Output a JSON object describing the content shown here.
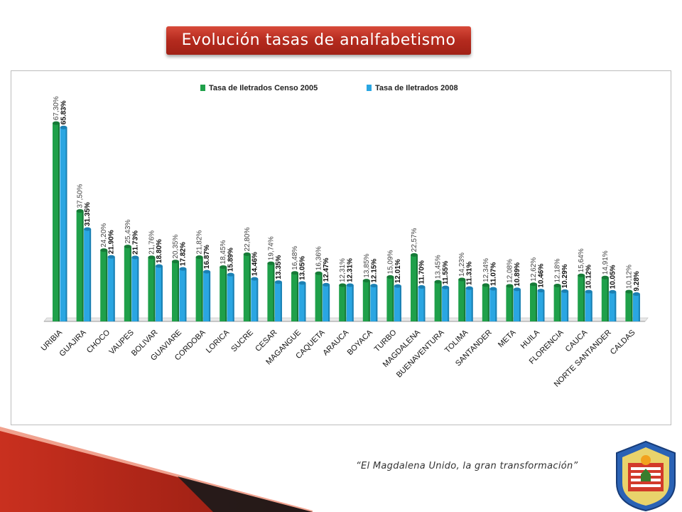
{
  "title": "Evolución tasas de analfabetismo",
  "tagline": "“El Magdalena Unido, la gran transformación”",
  "colors": {
    "series_2005": "#1fa04a",
    "series_2008": "#2aa6e2",
    "title_bg": "#b42a1e",
    "ribbon": "#b3261a"
  },
  "chart_data": {
    "type": "bar",
    "legend_position": "top",
    "grid": false,
    "ylim": [
      0,
      70
    ],
    "categories": [
      "URIBIA",
      "GUAJIRA",
      "CHOCO",
      "VAUPES",
      "BOLIVAR",
      "GUAVIARE",
      "CORDOBA",
      "LORICA",
      "SUCRE",
      "CESAR",
      "MAGANGUE",
      "CAQUETA",
      "ARAUCA",
      "BOYACA",
      "TURBO",
      "MAGDALENA",
      "BUENAVENTURA",
      "TOLIMA",
      "SANTANDER",
      "META",
      "HUILA",
      "FLORENCIA",
      "CAUCA",
      "NORTE SANTANDER",
      "CALDAS"
    ],
    "series": [
      {
        "name": "Tasa de Iletrados Censo 2005",
        "values": [
          67.3,
          37.5,
          24.2,
          25.43,
          21.76,
          20.35,
          21.82,
          18.45,
          22.8,
          19.74,
          16.48,
          16.36,
          12.31,
          13.85,
          15.09,
          22.57,
          13.45,
          14.23,
          12.34,
          12.08,
          12.62,
          12.18,
          15.64,
          14.91,
          10.12
        ],
        "labels": [
          "67,30%",
          "37,50%",
          "24,20%",
          "25,43%",
          "21,76%",
          "20,35%",
          "21,82%",
          "18,45%",
          "22,80%",
          "19,74%",
          "16,48%",
          "16,36%",
          "12,31%",
          "13,85%",
          "15,09%",
          "22,57%",
          "13,45%",
          "14,23%",
          "12,34%",
          "12,08%",
          "12,62%",
          "12,18%",
          "15,64%",
          "14,91%",
          "10,12%"
        ]
      },
      {
        "name": "Tasa de Iletrados 2008",
        "values": [
          65.83,
          31.35,
          21.9,
          21.73,
          18.8,
          17.82,
          16.87,
          15.89,
          14.46,
          13.35,
          13.05,
          12.47,
          12.31,
          12.15,
          12.01,
          11.7,
          11.55,
          11.31,
          11.07,
          10.89,
          10.46,
          10.29,
          10.12,
          10.05,
          9.28
        ],
        "labels": [
          "65.83%",
          "31.35%",
          "21.90%",
          "21.73%",
          "18.80%",
          "17.82%",
          "16.87%",
          "15.89%",
          "14.46%",
          "13.35%",
          "13.05%",
          "12.47%",
          "12.31%",
          "12.15%",
          "12.01%",
          "11.70%",
          "11.55%",
          "11.31%",
          "11.07%",
          "10.89%",
          "10.46%",
          "10.29%",
          "10.12%",
          "10.05%",
          "9.28%"
        ]
      }
    ]
  }
}
